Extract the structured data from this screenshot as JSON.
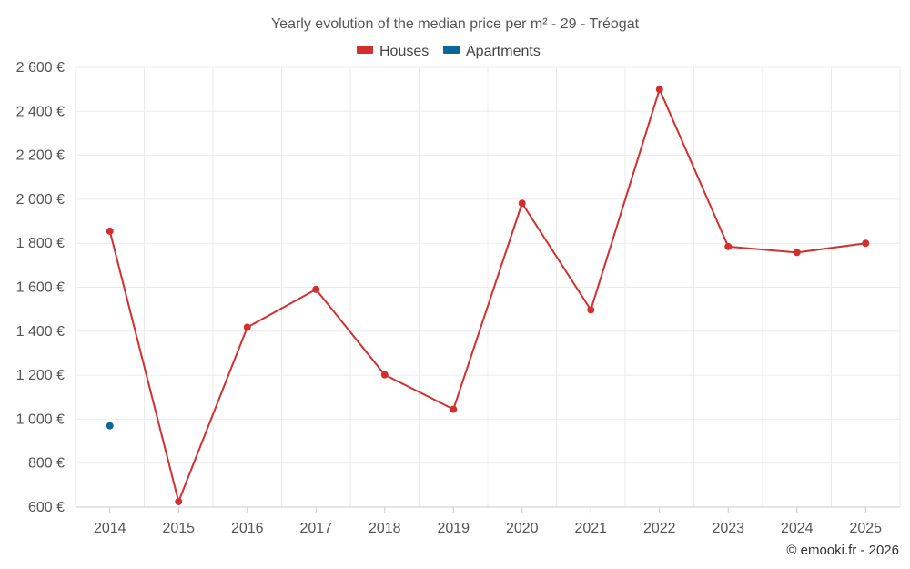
{
  "chart_data": {
    "type": "line",
    "title": "Yearly evolution of the median price per m² - 29 - Tréogat",
    "categories": [
      "2014",
      "2015",
      "2016",
      "2017",
      "2018",
      "2019",
      "2020",
      "2021",
      "2022",
      "2023",
      "2024",
      "2025"
    ],
    "series": [
      {
        "name": "Houses",
        "color": "#d32f2f",
        "values": [
          1855,
          625,
          1418,
          1590,
          1202,
          1045,
          1982,
          1497,
          2500,
          1785,
          1758,
          1800
        ]
      },
      {
        "name": "Apartments",
        "color": "#0d6796",
        "values": [
          970,
          null,
          null,
          null,
          null,
          null,
          null,
          null,
          null,
          null,
          null,
          null
        ]
      }
    ],
    "ylim": [
      600,
      2600
    ],
    "yticks": [
      600,
      800,
      1000,
      1200,
      1400,
      1600,
      1800,
      2000,
      2200,
      2400,
      2600
    ],
    "ytick_labels": [
      "600 €",
      "800 €",
      "1 000 €",
      "1 200 €",
      "1 400 €",
      "1 600 €",
      "1 800 €",
      "2 000 €",
      "2 200 €",
      "2 400 €",
      "2 600 €"
    ],
    "grid": true,
    "legend_position": "top-center",
    "credit": "© emooki.fr - 2026"
  }
}
